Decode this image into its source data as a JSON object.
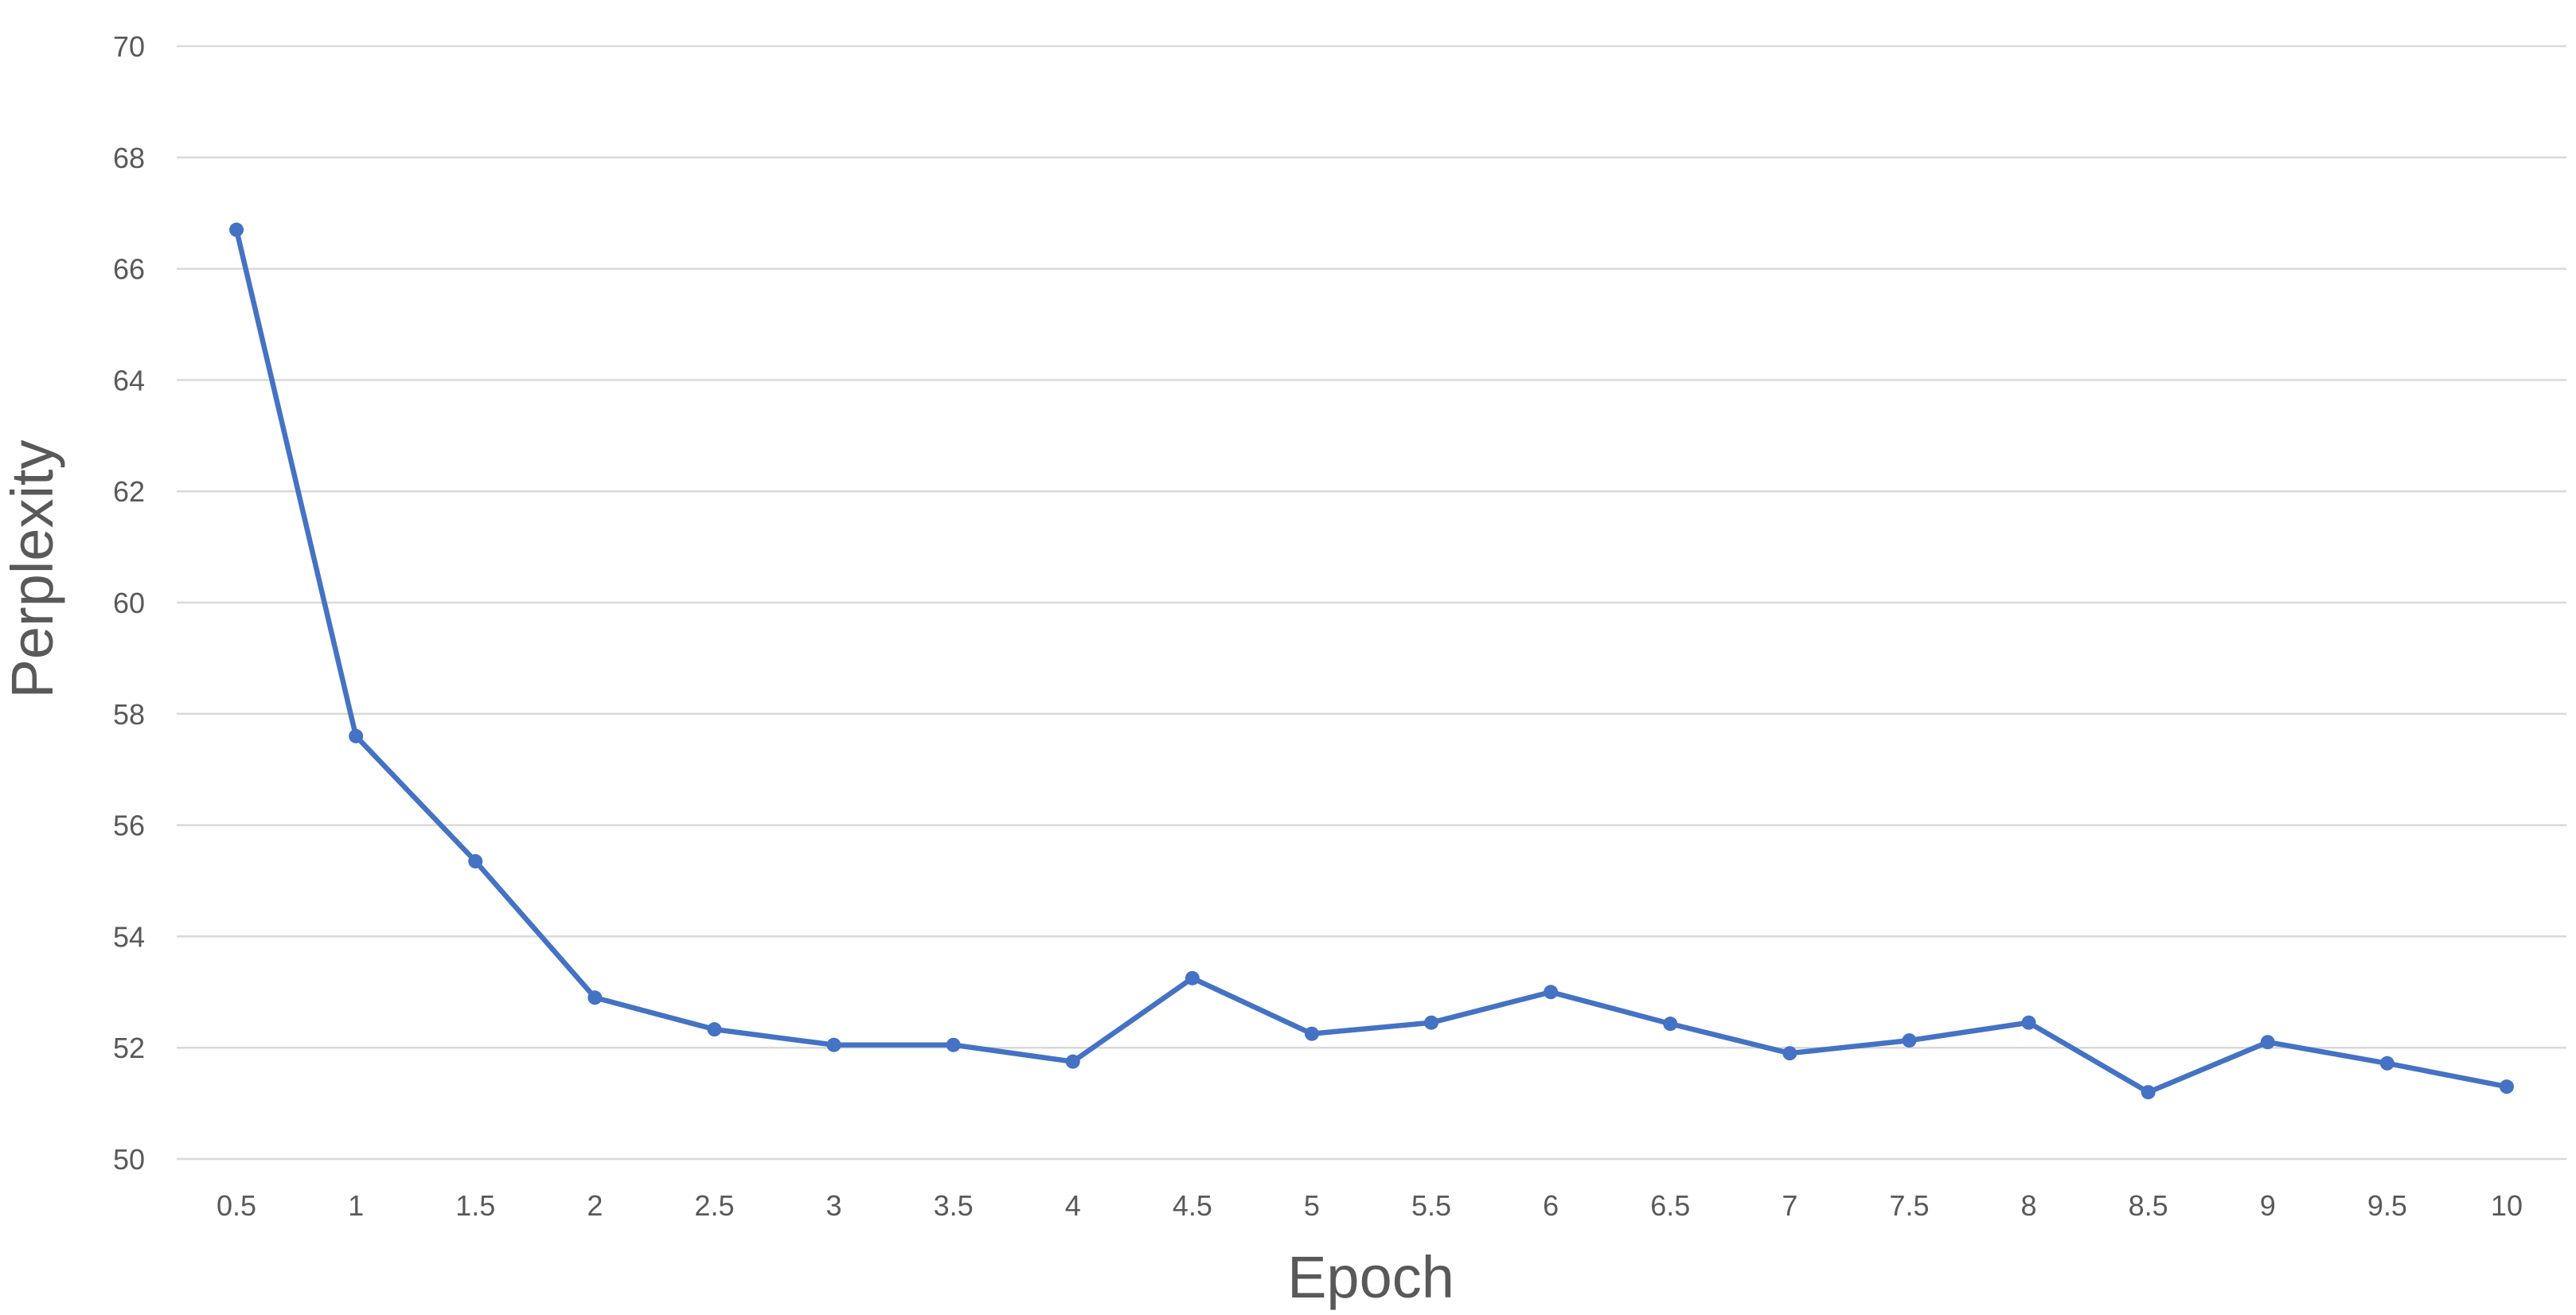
{
  "chart_data": {
    "type": "line",
    "title": "",
    "xlabel": "Epoch",
    "ylabel": "Perplexity",
    "categories": [
      "0.5",
      "1",
      "1.5",
      "2",
      "2.5",
      "3",
      "3.5",
      "4",
      "4.5",
      "5",
      "5.5",
      "6",
      "6.5",
      "7",
      "7.5",
      "8",
      "8.5",
      "9",
      "9.5",
      "10"
    ],
    "series": [
      {
        "values": [
          66.7,
          57.6,
          55.35,
          52.9,
          52.33,
          52.05,
          52.05,
          51.75,
          53.25,
          52.25,
          52.45,
          53.0,
          52.43,
          51.9,
          52.13,
          52.45,
          51.2,
          52.1,
          51.72,
          51.3
        ],
        "color": "#4472c4"
      }
    ],
    "ylim": [
      50,
      70
    ],
    "yticks": [
      "50",
      "52",
      "54",
      "56",
      "58",
      "60",
      "62",
      "64",
      "66",
      "68",
      "70"
    ],
    "grid": true,
    "legend": "none"
  }
}
